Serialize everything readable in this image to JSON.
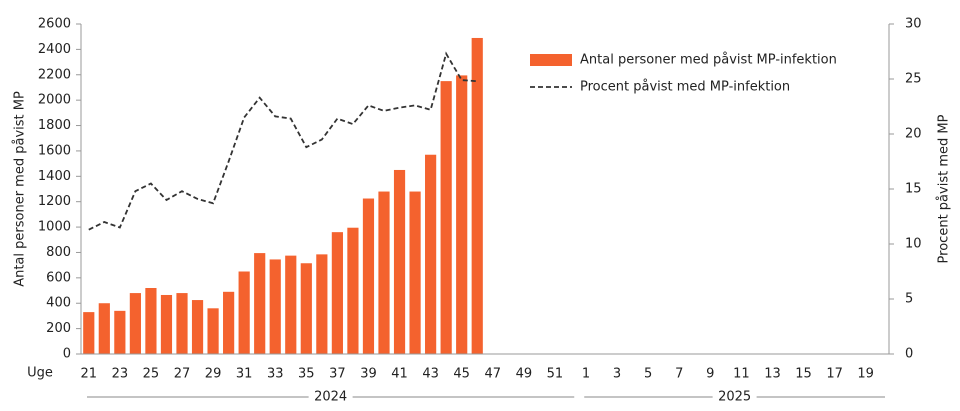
{
  "chart_data": {
    "type": "bar_line",
    "x_label": "Uge",
    "y_label": "Antal personer med påvist MP",
    "y2_label": "Procent påvist med MP",
    "categories": [
      "21",
      null,
      "23",
      null,
      "25",
      null,
      "27",
      null,
      "29",
      null,
      "31",
      null,
      "33",
      null,
      "35",
      null,
      "37",
      null,
      "39",
      null,
      "41",
      null,
      "43",
      null,
      "45",
      null,
      "47",
      null,
      "49",
      null,
      "51",
      null,
      "1",
      null,
      "3",
      null,
      "5",
      null,
      "7",
      null,
      "9",
      null,
      "11",
      null,
      "13",
      null,
      "15",
      null,
      "17",
      null,
      "19",
      null
    ],
    "x_groups": [
      {
        "label": "2024",
        "size": 32
      },
      {
        "label": "2025",
        "size": 20
      }
    ],
    "series": [
      {
        "name": "Antal personer med påvist MP-infektion",
        "type": "bar",
        "color": "#f4622e",
        "values": [
          330,
          400,
          340,
          480,
          520,
          465,
          480,
          425,
          360,
          490,
          650,
          795,
          745,
          775,
          715,
          785,
          960,
          995,
          1225,
          1280,
          1450,
          1280,
          1570,
          2150,
          2195,
          2490,
          null,
          null,
          null,
          null,
          null,
          null,
          null,
          null,
          null,
          null,
          null,
          null,
          null,
          null,
          null,
          null,
          null,
          null,
          null,
          null,
          null,
          null,
          null,
          null,
          null,
          null
        ]
      },
      {
        "name": "Procent påvist med MP-infektion",
        "type": "line",
        "axis": "y2",
        "color": "#333333",
        "dashed": true,
        "values": [
          11.3,
          12,
          11.5,
          14.8,
          15.5,
          14,
          14.8,
          14.1,
          13.7,
          17.5,
          21.5,
          23.3,
          21.6,
          21.4,
          18.8,
          19.5,
          21.4,
          20.9,
          22.6,
          22.1,
          22.4,
          22.6,
          22.2,
          27.3,
          24.9,
          24.8,
          null,
          null,
          null,
          null,
          null,
          null,
          null,
          null,
          null,
          null,
          null,
          null,
          null,
          null,
          null,
          null,
          null,
          null,
          null,
          null,
          null,
          null,
          null,
          null,
          null,
          null
        ]
      }
    ],
    "ylim": [
      0,
      2600
    ],
    "yticks": [
      0,
      200,
      400,
      600,
      800,
      1000,
      1200,
      1400,
      1600,
      1800,
      2000,
      2200,
      2400,
      2600
    ],
    "y2lim": [
      0,
      30
    ],
    "y2ticks": [
      0,
      5,
      10,
      15,
      20,
      25,
      30
    ],
    "legend": "top-right"
  }
}
